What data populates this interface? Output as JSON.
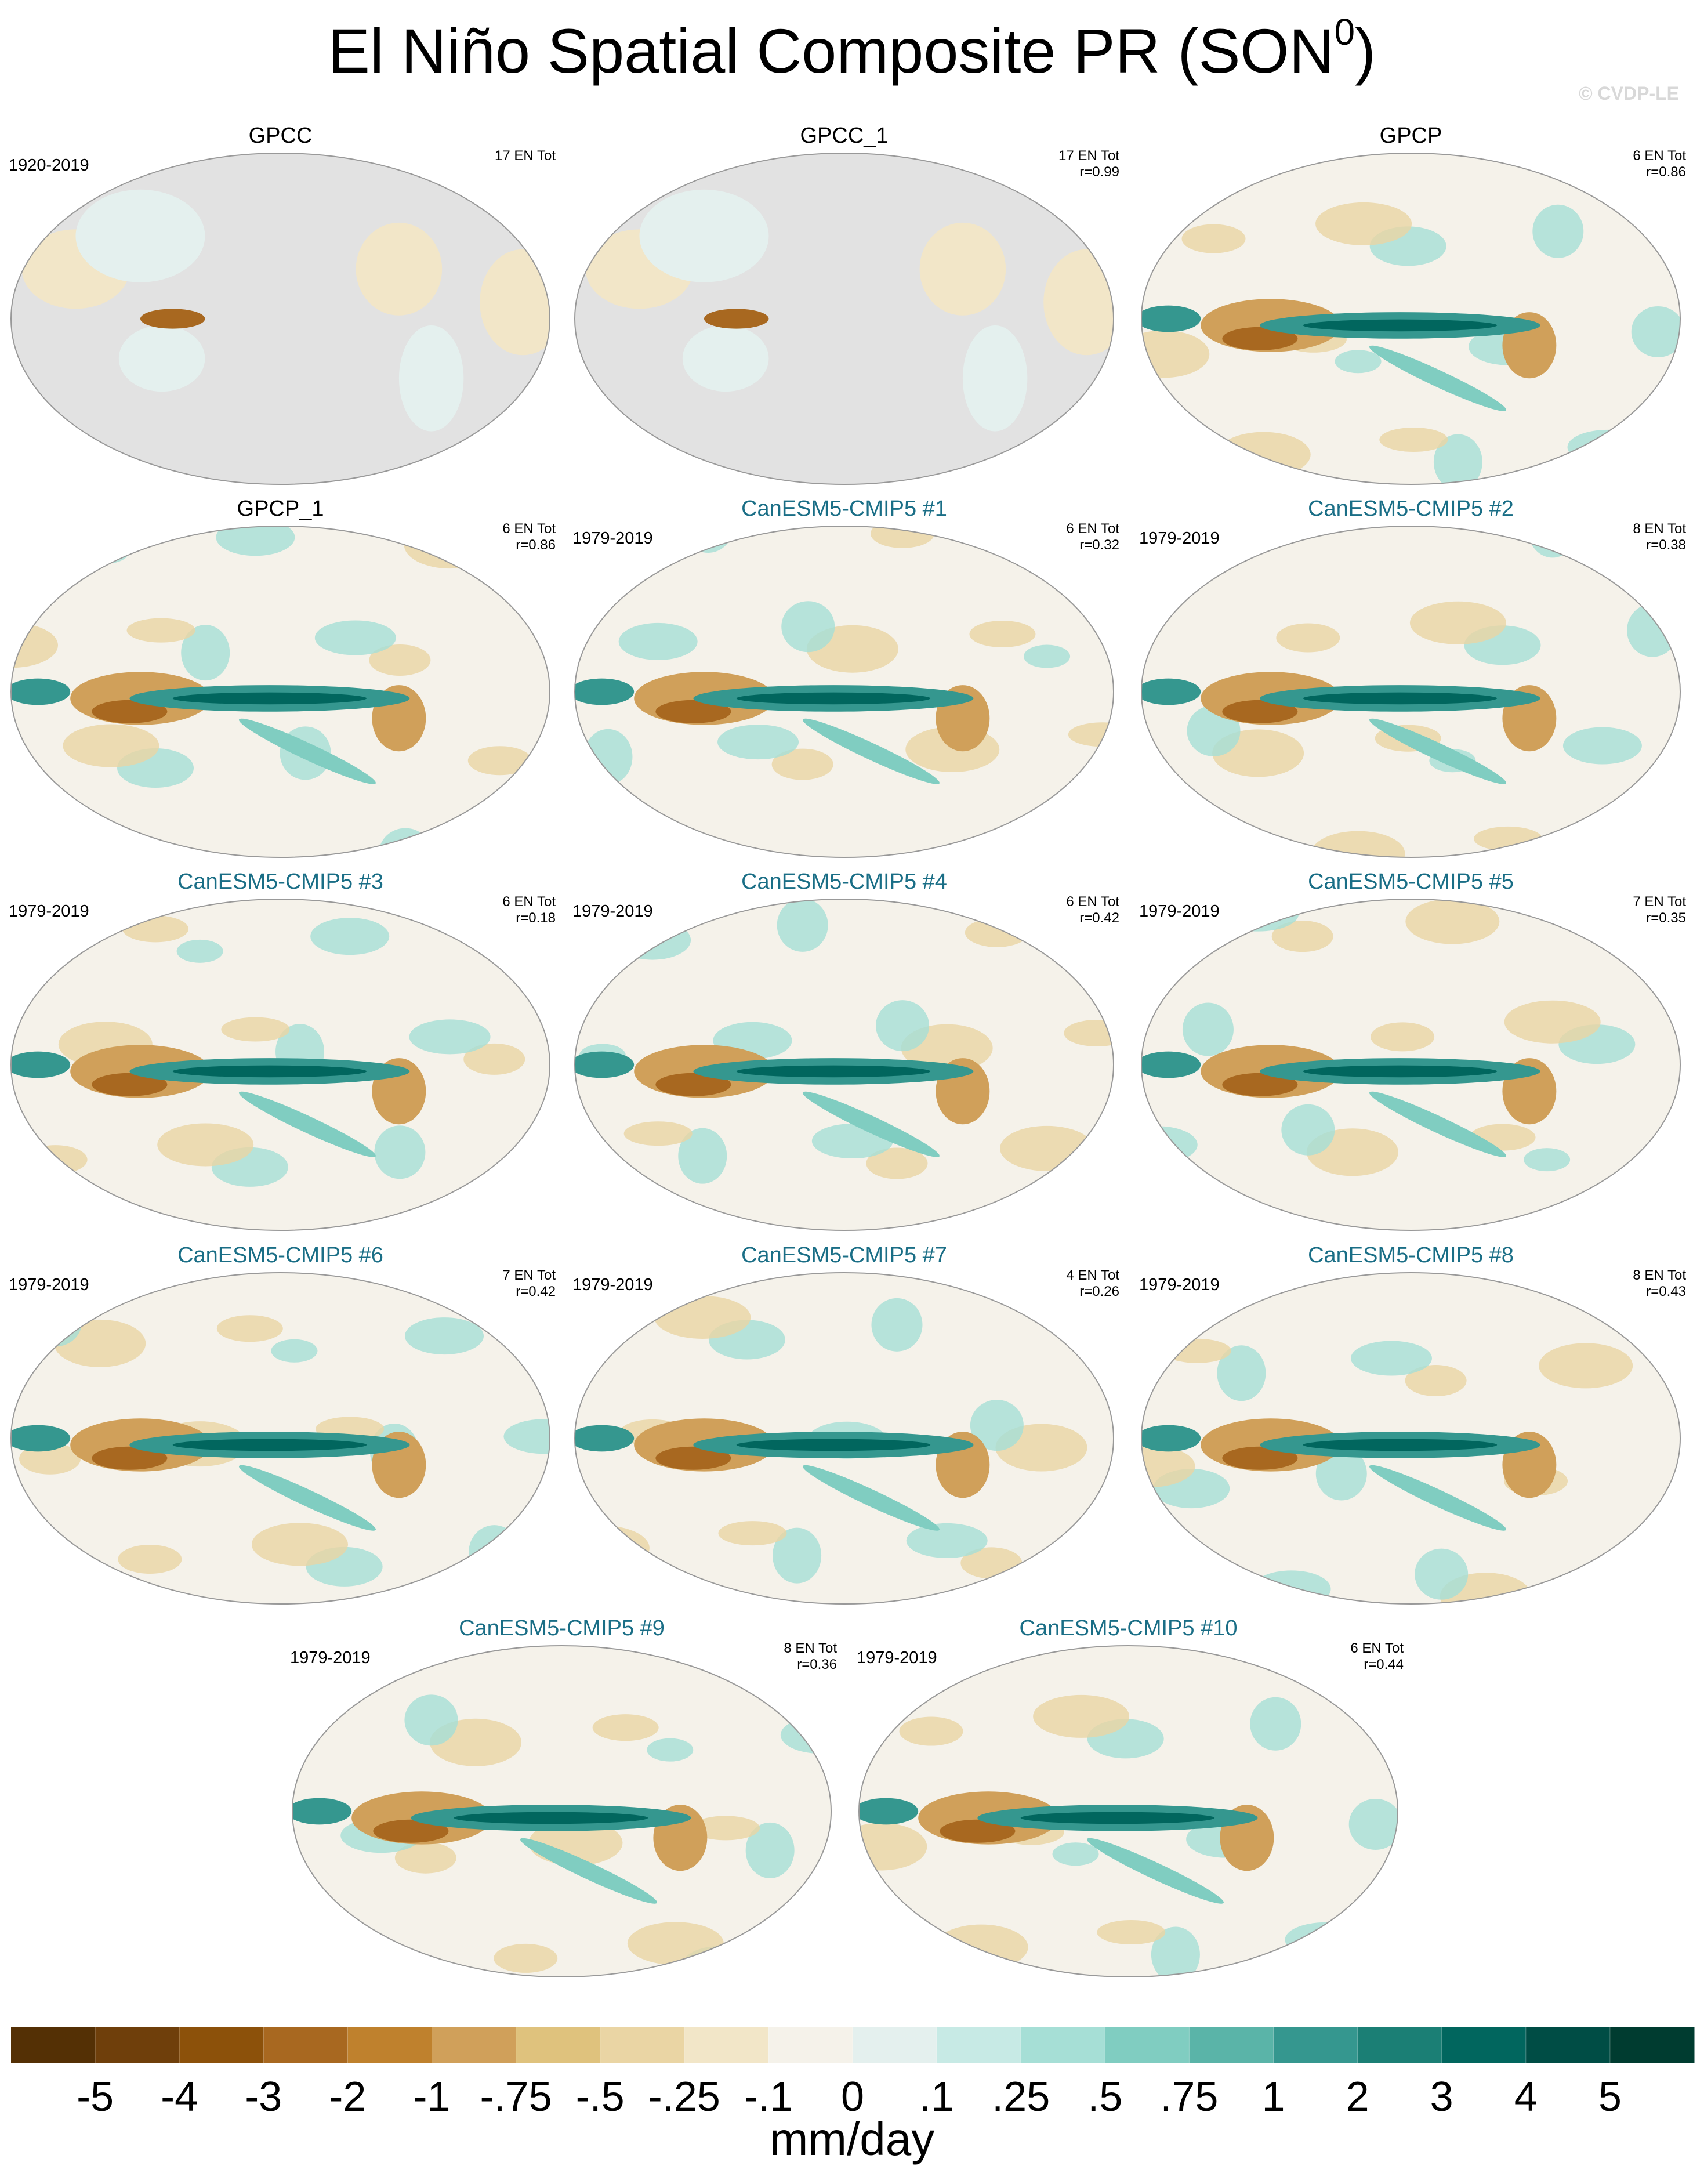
{
  "header": {
    "title": "El Niño Spatial Composite PR (SON",
    "title_sup": "0",
    "title_end": ")",
    "watermark": "© CVDP-LE"
  },
  "panels": [
    {
      "title": "GPCC",
      "title_color": "#000000",
      "period": "1920-2019",
      "count": "17 EN Tot",
      "land_only": true
    },
    {
      "title": "GPCC_1",
      "title_color": "#000000",
      "count": "17 EN Tot",
      "r": "r=0.99",
      "land_only": true
    },
    {
      "title": "GPCP",
      "title_color": "#000000",
      "count": "6 EN Tot",
      "r": "r=0.86",
      "land_only": false
    },
    {
      "title": "GPCP_1",
      "title_color": "#000000",
      "count": "6 EN Tot",
      "r": "r=0.86",
      "land_only": false
    },
    {
      "title": "CanESM5-CMIP5 #1",
      "title_color": "#1a6e86",
      "period": "1979-2019",
      "count": "6 EN Tot",
      "r": "r=0.32",
      "land_only": false
    },
    {
      "title": "CanESM5-CMIP5 #2",
      "title_color": "#1a6e86",
      "period": "1979-2019",
      "count": "8 EN Tot",
      "r": "r=0.38",
      "land_only": false
    },
    {
      "title": "CanESM5-CMIP5 #3",
      "title_color": "#1a6e86",
      "period": "1979-2019",
      "count": "6 EN Tot",
      "r": "r=0.18",
      "land_only": false
    },
    {
      "title": "CanESM5-CMIP5 #4",
      "title_color": "#1a6e86",
      "period": "1979-2019",
      "count": "6 EN Tot",
      "r": "r=0.42",
      "land_only": false
    },
    {
      "title": "CanESM5-CMIP5 #5",
      "title_color": "#1a6e86",
      "period": "1979-2019",
      "count": "7 EN Tot",
      "r": "r=0.35",
      "land_only": false
    },
    {
      "title": "CanESM5-CMIP5 #6",
      "title_color": "#1a6e86",
      "period": "1979-2019",
      "count": "7 EN Tot",
      "r": "r=0.42",
      "land_only": false
    },
    {
      "title": "CanESM5-CMIP5 #7",
      "title_color": "#1a6e86",
      "period": "1979-2019",
      "count": "4 EN Tot",
      "r": "r=0.26",
      "land_only": false
    },
    {
      "title": "CanESM5-CMIP5 #8",
      "title_color": "#1a6e86",
      "period": "1979-2019",
      "count": "8 EN Tot",
      "r": "r=0.43",
      "land_only": false
    },
    {
      "title": "CanESM5-CMIP5 #9",
      "title_color": "#1a6e86",
      "period": "1979-2019",
      "count": "8 EN Tot",
      "r": "r=0.36",
      "land_only": false
    },
    {
      "title": "CanESM5-CMIP5 #10",
      "title_color": "#1a6e86",
      "period": "1979-2019",
      "count": "6 EN Tot",
      "r": "r=0.44",
      "land_only": false
    }
  ],
  "colorbar": {
    "colors": [
      "#543005",
      "#6f3f0b",
      "#8c510a",
      "#a86820",
      "#bf812d",
      "#d0a05a",
      "#dfc27d",
      "#ead5a4",
      "#f2e6c8",
      "#f5f2ea",
      "#e4f0ee",
      "#c7eae5",
      "#a6dfd6",
      "#80cdc1",
      "#5ab4a8",
      "#35978f",
      "#1b7f75",
      "#01665e",
      "#004d45",
      "#003c30"
    ],
    "ticks": [
      -5,
      -4,
      -3,
      -2,
      -1,
      {
        "value": -0.75,
        "label": "-.75"
      },
      {
        "value": -0.5,
        "label": "-.5"
      },
      {
        "value": -0.25,
        "label": "-.25"
      },
      {
        "value": -0.1,
        "label": "-.1"
      },
      0,
      {
        "value": 0.1,
        "label": ".1"
      },
      {
        "value": 0.25,
        "label": ".25"
      },
      {
        "value": 0.5,
        "label": ".5"
      },
      {
        "value": 0.75,
        "label": ".75"
      },
      1,
      2,
      3,
      4,
      5
    ],
    "unit": "mm/day"
  }
}
